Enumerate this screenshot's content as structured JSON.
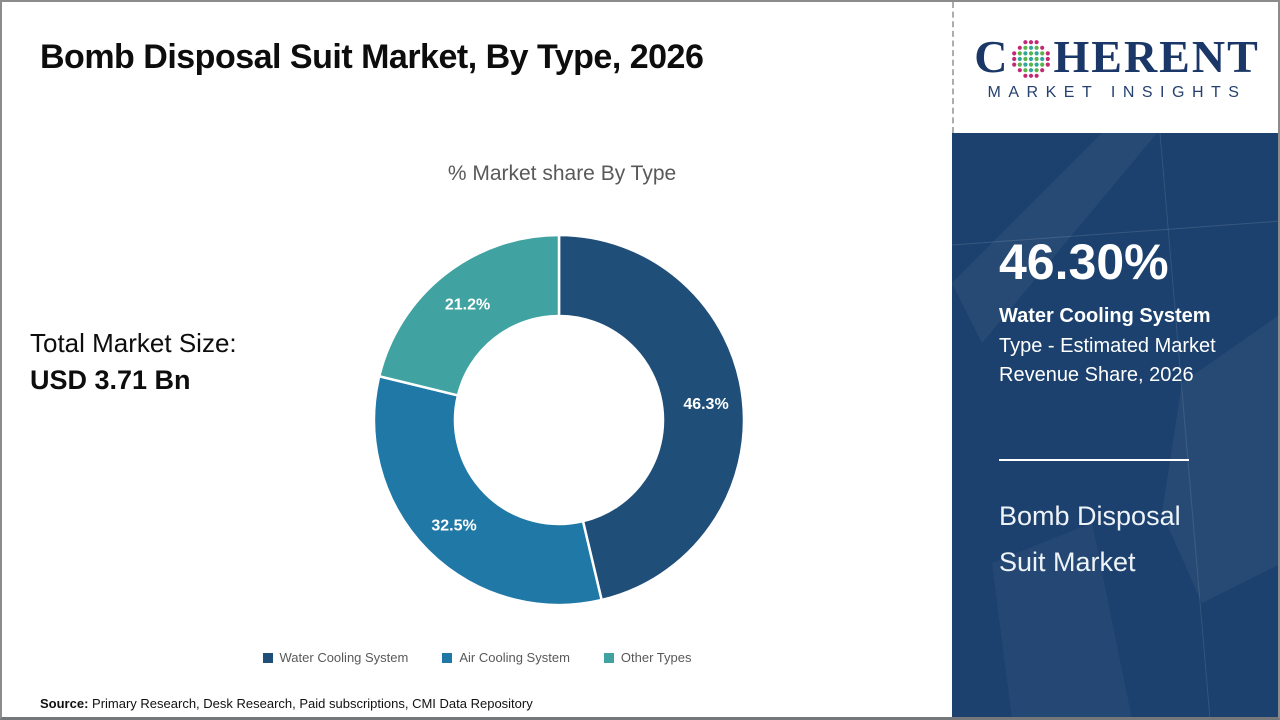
{
  "title": "Bomb Disposal Suit Market, By Type, 2026",
  "logo": {
    "word_start": "C",
    "word_end": "HERENT",
    "subtitle": "MARKET INSIGHTS",
    "navy": "#1b3768",
    "globe_colors": {
      "edge": "#c22a78",
      "teal": "#2fa79e",
      "green": "#5ab447"
    }
  },
  "chart_data": {
    "type": "pie",
    "donut": true,
    "title": "% Market share By Type",
    "categories": [
      "Water Cooling System",
      "Air Cooling System",
      "Other Types"
    ],
    "values": [
      46.3,
      32.5,
      21.2
    ],
    "labels": [
      "46.3%",
      "32.5%",
      "21.2%"
    ],
    "colors": [
      "#1F4E79",
      "#2078A6",
      "#40A3A2"
    ],
    "legend_position": "bottom",
    "start_angle_deg": 0,
    "direction": "clockwise"
  },
  "total_market": {
    "label": "Total Market Size:",
    "value": "USD 3.71 Bn"
  },
  "sidebar": {
    "stat_value": "46.30%",
    "stat_label_bold": "Water Cooling System",
    "stat_label_rest": "Type - Estimated Market Revenue Share, 2026",
    "market_name": "Bomb Disposal Suit Market",
    "background": "#1c416e"
  },
  "source": {
    "label": "Source:",
    "text": " Primary Research, Desk Research, Paid subscriptions, CMI Data Repository"
  }
}
